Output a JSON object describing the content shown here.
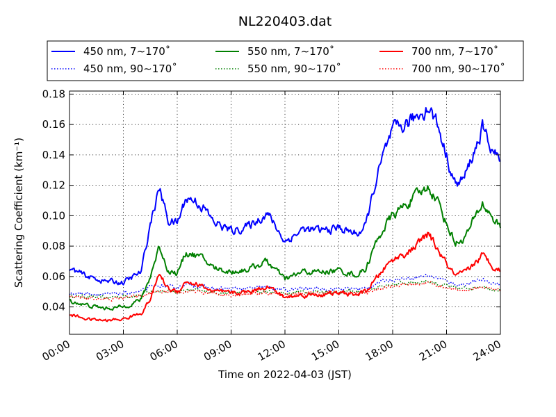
{
  "chart_data": {
    "type": "line",
    "title": "NL220403.dat",
    "xlabel": "Time on 2022-04-03 (JST)",
    "ylabel": "Scattering Coefficient (km⁻¹)",
    "xlim": [
      "00:00",
      "24:00"
    ],
    "ylim": [
      0.022,
      0.182
    ],
    "x_ticks": [
      "00:00",
      "03:00",
      "06:00",
      "09:00",
      "12:00",
      "15:00",
      "18:00",
      "21:00",
      "24:00"
    ],
    "y_ticks": [
      "0.04",
      "0.06",
      "0.08",
      "0.10",
      "0.12",
      "0.14",
      "0.16",
      "0.18"
    ],
    "grid": true,
    "legend_position": "top",
    "x": [
      "00:00",
      "01:00",
      "02:00",
      "03:00",
      "04:00",
      "04:30",
      "05:00",
      "05:30",
      "06:00",
      "06:30",
      "07:00",
      "07:30",
      "08:00",
      "09:00",
      "10:00",
      "11:00",
      "12:00",
      "13:00",
      "14:00",
      "15:00",
      "16:00",
      "16:30",
      "17:00",
      "17:30",
      "18:00",
      "19:00",
      "20:00",
      "20:30",
      "21:00",
      "21:30",
      "22:00",
      "23:00",
      "23:30",
      "24:00"
    ],
    "series": [
      {
        "name": "450 nm, 7∼170˚",
        "color": "#0000ff",
        "style": "solid",
        "values": [
          0.065,
          0.06,
          0.057,
          0.056,
          0.063,
          0.095,
          0.118,
          0.097,
          0.095,
          0.112,
          0.11,
          0.105,
          0.096,
          0.09,
          0.093,
          0.102,
          0.083,
          0.091,
          0.09,
          0.092,
          0.088,
          0.093,
          0.12,
          0.14,
          0.155,
          0.162,
          0.172,
          0.16,
          0.14,
          0.12,
          0.125,
          0.157,
          0.145,
          0.135
        ]
      },
      {
        "name": "550 nm, 7∼170˚",
        "color": "#008000",
        "style": "solid",
        "values": [
          0.044,
          0.041,
          0.039,
          0.04,
          0.045,
          0.06,
          0.08,
          0.064,
          0.062,
          0.076,
          0.074,
          0.071,
          0.066,
          0.063,
          0.065,
          0.07,
          0.058,
          0.063,
          0.063,
          0.064,
          0.061,
          0.065,
          0.08,
          0.092,
          0.1,
          0.11,
          0.119,
          0.11,
          0.095,
          0.082,
          0.085,
          0.108,
          0.1,
          0.092
        ]
      },
      {
        "name": "700 nm, 7∼170˚",
        "color": "#ff0000",
        "style": "solid",
        "values": [
          0.035,
          0.032,
          0.031,
          0.032,
          0.036,
          0.045,
          0.062,
          0.052,
          0.05,
          0.057,
          0.055,
          0.053,
          0.05,
          0.049,
          0.05,
          0.054,
          0.046,
          0.048,
          0.048,
          0.049,
          0.048,
          0.05,
          0.057,
          0.065,
          0.071,
          0.077,
          0.088,
          0.078,
          0.068,
          0.06,
          0.062,
          0.074,
          0.068,
          0.064
        ]
      },
      {
        "name": "450 nm, 90∼170˚",
        "color": "#0000ff",
        "style": "dotted",
        "values": [
          0.049,
          0.049,
          0.048,
          0.049,
          0.05,
          0.053,
          0.054,
          0.053,
          0.053,
          0.055,
          0.054,
          0.053,
          0.052,
          0.052,
          0.052,
          0.053,
          0.051,
          0.052,
          0.052,
          0.052,
          0.052,
          0.052,
          0.055,
          0.057,
          0.058,
          0.059,
          0.061,
          0.059,
          0.057,
          0.055,
          0.055,
          0.058,
          0.056,
          0.055
        ]
      },
      {
        "name": "550 nm, 90∼170˚",
        "color": "#008000",
        "style": "dotted",
        "values": [
          0.047,
          0.047,
          0.046,
          0.047,
          0.048,
          0.05,
          0.051,
          0.05,
          0.05,
          0.051,
          0.051,
          0.05,
          0.05,
          0.049,
          0.05,
          0.05,
          0.049,
          0.05,
          0.05,
          0.05,
          0.05,
          0.05,
          0.052,
          0.054,
          0.055,
          0.056,
          0.057,
          0.055,
          0.054,
          0.052,
          0.052,
          0.054,
          0.052,
          0.051
        ]
      },
      {
        "name": "700 nm, 90∼170˚",
        "color": "#ff0000",
        "style": "dotted",
        "values": [
          0.046,
          0.046,
          0.045,
          0.046,
          0.047,
          0.049,
          0.05,
          0.049,
          0.049,
          0.05,
          0.05,
          0.049,
          0.049,
          0.048,
          0.049,
          0.049,
          0.048,
          0.049,
          0.049,
          0.049,
          0.049,
          0.049,
          0.051,
          0.053,
          0.054,
          0.055,
          0.056,
          0.054,
          0.053,
          0.051,
          0.051,
          0.053,
          0.052,
          0.051
        ]
      }
    ]
  }
}
